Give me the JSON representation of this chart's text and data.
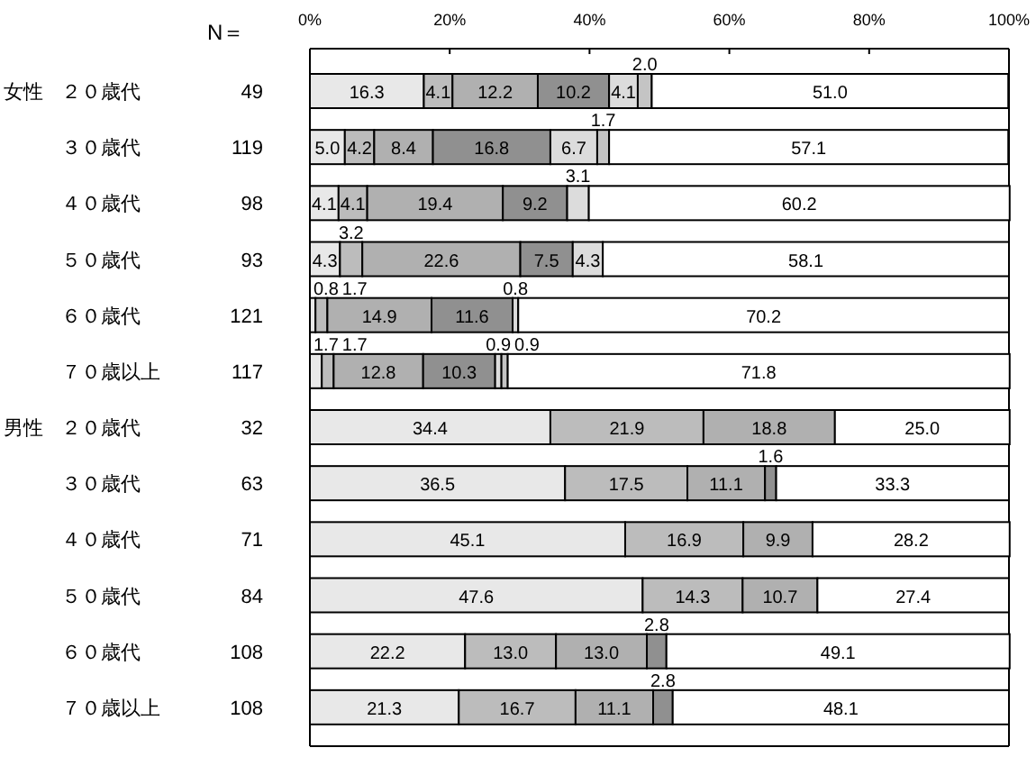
{
  "chart_data": {
    "type": "bar",
    "orientation": "horizontal",
    "stacked": true,
    "categories": [
      "２０歳代",
      "３０歳代",
      "４０歳代",
      "５０歳代",
      "６０歳代",
      "７０歳以上",
      "２０歳代",
      "３０歳代",
      "４０歳代",
      "５０歳代",
      "６０歳代",
      "７０歳以上"
    ],
    "xlim": [
      0,
      100
    ],
    "xticks": [
      {
        "value": 0,
        "label": "0%"
      },
      {
        "value": 20,
        "label": "20%"
      },
      {
        "value": 40,
        "label": "40%"
      },
      {
        "value": 60,
        "label": "60%"
      },
      {
        "value": 80,
        "label": "80%"
      },
      {
        "value": 100,
        "label": "100%"
      }
    ],
    "series": [
      {
        "color": "#e8e8e8",
        "values": [
          16.3,
          5.0,
          4.1,
          4.3,
          0.8,
          1.7,
          34.4,
          36.5,
          45.1,
          47.6,
          22.2,
          21.3
        ],
        "value_labels": [
          "16.3",
          "5.0",
          "4.1",
          "4.3",
          "0.8",
          "1.7",
          "34.4",
          "36.5",
          "45.1",
          "47.6",
          "22.2",
          "21.3"
        ]
      },
      {
        "color": "#bcbcbc",
        "values": [
          4.1,
          4.2,
          4.1,
          3.2,
          1.7,
          1.7,
          21.9,
          17.5,
          16.9,
          14.3,
          13.0,
          16.7
        ],
        "value_labels": [
          "4.1",
          "4.2",
          "4.1",
          "3.2",
          "1.7",
          "1.7",
          "21.9",
          "17.5",
          "16.9",
          "14.3",
          "13.0",
          "16.7"
        ]
      },
      {
        "color": "#b0b0b0",
        "values": [
          12.2,
          8.4,
          19.4,
          22.6,
          14.9,
          12.8,
          18.8,
          11.1,
          9.9,
          10.7,
          13.0,
          11.1
        ],
        "value_labels": [
          "12.2",
          "8.4",
          "19.4",
          "22.6",
          "14.9",
          "12.8",
          "18.8",
          "11.1",
          "9.9",
          "10.7",
          "13.0",
          "11.1"
        ]
      },
      {
        "color": "#909090",
        "values": [
          10.2,
          16.8,
          9.2,
          7.5,
          11.6,
          10.3,
          0,
          1.6,
          0,
          0,
          2.8,
          2.8
        ],
        "value_labels": [
          "10.2",
          "16.8",
          "9.2",
          "7.5",
          "11.6",
          "10.3",
          null,
          "1.6",
          null,
          null,
          "2.8",
          "2.8"
        ]
      },
      {
        "color": "#dcdcdc",
        "values": [
          4.1,
          6.7,
          3.1,
          4.3,
          0.8,
          0.9,
          0,
          0,
          0,
          0,
          0,
          0
        ],
        "value_labels": [
          "4.1",
          "6.7",
          "3.1",
          "4.3",
          "0.8",
          "0.9",
          null,
          null,
          null,
          null,
          null,
          null
        ]
      },
      {
        "color": "#c4c4c4",
        "values": [
          2.0,
          1.7,
          0,
          0,
          0,
          0.9,
          0,
          0,
          0,
          0,
          0,
          0
        ],
        "value_labels": [
          "2.0",
          "1.7",
          null,
          null,
          null,
          "0.9",
          null,
          null,
          null,
          null,
          null,
          null
        ]
      },
      {
        "color": "#ffffff",
        "values": [
          51.0,
          57.1,
          60.2,
          58.1,
          70.2,
          71.8,
          25.0,
          33.3,
          28.2,
          27.4,
          49.1,
          48.1
        ],
        "value_labels": [
          "51.0",
          "57.1",
          "60.2",
          "58.1",
          "70.2",
          "71.8",
          "25.0",
          "33.3",
          "28.2",
          "27.4",
          "49.1",
          "48.1"
        ]
      }
    ],
    "annotations": [
      "N＝",
      "女性",
      "男性",
      "49",
      "119",
      "98",
      "93",
      "121",
      "117",
      "32",
      "63",
      "71",
      "84",
      "108",
      "108"
    ]
  }
}
